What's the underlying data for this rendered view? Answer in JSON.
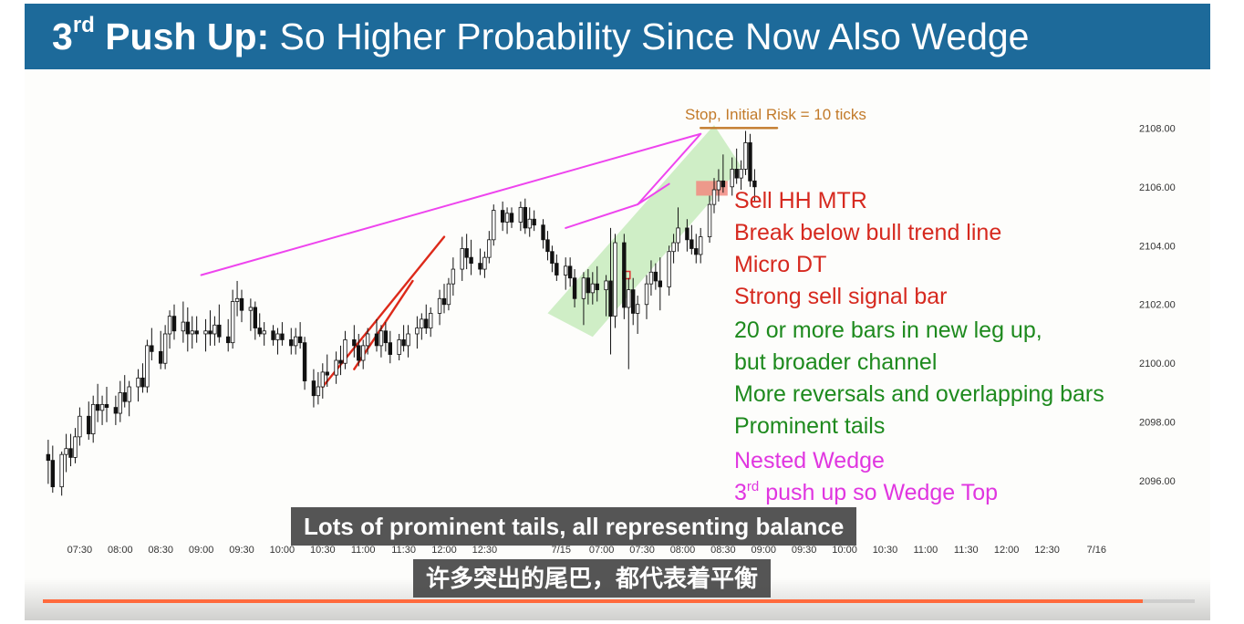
{
  "slide": {
    "title_bold": "3",
    "title_sup": "rd",
    "title_bold_rest": " Push Up:",
    "title_rest": " So Higher Probability Since Now Also Wedge"
  },
  "annotations": {
    "stop_label": "Stop, Initial Risk = 10 ticks",
    "notes": [
      {
        "text": "Sell HH MTR",
        "color": "red"
      },
      {
        "text": "Break below bull trend line",
        "color": "red"
      },
      {
        "text": "Micro DT",
        "color": "red"
      },
      {
        "text": "Strong sell signal bar",
        "color": "red"
      },
      {
        "text": "20 or more bars in new leg up,",
        "color": "green"
      },
      {
        "text": "but broader channel",
        "color": "green"
      },
      {
        "text": "More reversals and overlapping bars",
        "color": "green"
      },
      {
        "text": "Prominent tails",
        "color": "green"
      },
      {
        "text": "Nested Wedge",
        "color": "pink"
      }
    ],
    "last_note_pre": "3",
    "last_note_sup": "rd",
    "last_note_rest": " push up so Wedge Top"
  },
  "captions": {
    "english": "Lots of prominent tails, all representing balance",
    "chinese": "许多突出的尾巴，都代表着平衡"
  },
  "video": {
    "progress_fraction": 0.955
  },
  "colors": {
    "title_bar": "#1d6a9a",
    "red_text": "#d6291f",
    "green_text": "#1e8a1e",
    "pink_text": "#e036e0",
    "wedge_line": "#ee44ee",
    "trend_line": "#dd2a1a",
    "stop_line": "#c27a2a",
    "channel_fill": "#bfe8b4",
    "entry_box": "#f28a80"
  },
  "chart_data": {
    "type": "candlestick",
    "x_ticks": [
      "07:30",
      "08:00",
      "08:30",
      "09:00",
      "09:30",
      "10:00",
      "10:30",
      "11:00",
      "11:30",
      "12:00",
      "12:30",
      "7/15",
      "07:00",
      "07:30",
      "08:00",
      "08:30",
      "09:00",
      "09:30",
      "10:00",
      "10:30",
      "11:00",
      "11:30",
      "12:00",
      "12:30",
      "7/16"
    ],
    "y_ticks": [
      "2108.00",
      "2106.00",
      "2104.00",
      "2102.00",
      "2100.00",
      "2098.00",
      "2096.00"
    ],
    "ylim": [
      2094.3,
      2109.25
    ],
    "bars_x_range": [
      0,
      159
    ],
    "x_tick_positions": [
      9,
      18,
      27,
      36,
      45,
      54,
      63,
      72,
      81,
      90,
      99,
      116,
      125,
      134,
      143,
      152,
      161,
      170,
      179,
      188,
      197,
      206,
      215,
      224,
      235
    ],
    "xlim": [
      0,
      240
    ],
    "candles": [
      {
        "o": 2096.9,
        "h": 2097.4,
        "l": 2095.9,
        "c": 2096.7
      },
      {
        "o": 2096.7,
        "h": 2097.2,
        "l": 2095.6,
        "c": 2095.8
      },
      {
        "o": 2095.8,
        "h": 2097.0,
        "l": 2095.5,
        "c": 2096.9
      },
      {
        "o": 2096.9,
        "h": 2097.6,
        "l": 2096.3,
        "c": 2097.1
      },
      {
        "o": 2097.1,
        "h": 2097.6,
        "l": 2096.5,
        "c": 2096.8
      },
      {
        "o": 2096.8,
        "h": 2097.8,
        "l": 2096.6,
        "c": 2097.5
      },
      {
        "o": 2097.5,
        "h": 2098.5,
        "l": 2097.2,
        "c": 2098.2
      },
      {
        "o": 2098.2,
        "h": 2098.7,
        "l": 2097.4,
        "c": 2097.6
      },
      {
        "o": 2097.6,
        "h": 2098.9,
        "l": 2097.3,
        "c": 2098.6
      },
      {
        "o": 2098.6,
        "h": 2099.3,
        "l": 2098.0,
        "c": 2098.4
      },
      {
        "o": 2098.4,
        "h": 2098.9,
        "l": 2097.9,
        "c": 2098.6
      },
      {
        "o": 2098.6,
        "h": 2099.2,
        "l": 2098.0,
        "c": 2098.5
      },
      {
        "o": 2098.5,
        "h": 2098.9,
        "l": 2097.9,
        "c": 2098.3
      },
      {
        "o": 2098.3,
        "h": 2099.4,
        "l": 2098.0,
        "c": 2099.0
      },
      {
        "o": 2099.0,
        "h": 2099.6,
        "l": 2098.5,
        "c": 2098.7
      },
      {
        "o": 2098.7,
        "h": 2099.4,
        "l": 2098.2,
        "c": 2099.2
      },
      {
        "o": 2099.2,
        "h": 2099.8,
        "l": 2098.7,
        "c": 2099.5
      },
      {
        "o": 2099.5,
        "h": 2100.0,
        "l": 2099.0,
        "c": 2099.2
      },
      {
        "o": 2099.2,
        "h": 2100.8,
        "l": 2099.0,
        "c": 2100.6
      },
      {
        "o": 2100.6,
        "h": 2101.2,
        "l": 2100.1,
        "c": 2100.4
      },
      {
        "o": 2100.4,
        "h": 2101.1,
        "l": 2099.8,
        "c": 2100.0
      },
      {
        "o": 2100.0,
        "h": 2101.3,
        "l": 2099.8,
        "c": 2101.0
      },
      {
        "o": 2101.0,
        "h": 2101.8,
        "l": 2100.5,
        "c": 2101.6
      },
      {
        "o": 2101.6,
        "h": 2102.0,
        "l": 2100.8,
        "c": 2101.1
      },
      {
        "o": 2101.1,
        "h": 2102.1,
        "l": 2100.7,
        "c": 2101.4
      },
      {
        "o": 2101.4,
        "h": 2101.9,
        "l": 2100.4,
        "c": 2101.0
      },
      {
        "o": 2101.0,
        "h": 2101.6,
        "l": 2100.5,
        "c": 2101.1
      },
      {
        "o": 2101.1,
        "h": 2101.6,
        "l": 2100.7,
        "c": 2101.0
      },
      {
        "o": 2101.0,
        "h": 2101.5,
        "l": 2100.4,
        "c": 2101.1
      },
      {
        "o": 2101.1,
        "h": 2101.8,
        "l": 2100.6,
        "c": 2101.0
      },
      {
        "o": 2101.0,
        "h": 2101.6,
        "l": 2100.6,
        "c": 2101.3
      },
      {
        "o": 2101.3,
        "h": 2102.0,
        "l": 2100.7,
        "c": 2100.9
      },
      {
        "o": 2100.9,
        "h": 2101.5,
        "l": 2100.4,
        "c": 2100.7
      },
      {
        "o": 2100.7,
        "h": 2102.5,
        "l": 2100.5,
        "c": 2102.1
      },
      {
        "o": 2102.1,
        "h": 2102.8,
        "l": 2101.6,
        "c": 2102.2
      },
      {
        "o": 2102.2,
        "h": 2102.5,
        "l": 2101.4,
        "c": 2101.8
      },
      {
        "o": 2101.8,
        "h": 2102.2,
        "l": 2101.1,
        "c": 2101.9
      },
      {
        "o": 2101.9,
        "h": 2102.1,
        "l": 2100.8,
        "c": 2101.2
      },
      {
        "o": 2101.2,
        "h": 2101.7,
        "l": 2100.9,
        "c": 2101.0
      },
      {
        "o": 2101.0,
        "h": 2101.4,
        "l": 2100.6,
        "c": 2101.1
      },
      {
        "o": 2101.1,
        "h": 2101.3,
        "l": 2100.6,
        "c": 2100.8
      },
      {
        "o": 2100.8,
        "h": 2101.2,
        "l": 2100.3,
        "c": 2101.0
      },
      {
        "o": 2101.0,
        "h": 2101.4,
        "l": 2100.6,
        "c": 2100.8
      },
      {
        "o": 2100.8,
        "h": 2101.2,
        "l": 2100.3,
        "c": 2100.6
      },
      {
        "o": 2100.6,
        "h": 2101.2,
        "l": 2100.3,
        "c": 2100.9
      },
      {
        "o": 2100.9,
        "h": 2101.4,
        "l": 2100.5,
        "c": 2100.7
      },
      {
        "o": 2100.7,
        "h": 2100.9,
        "l": 2099.1,
        "c": 2099.4
      },
      {
        "o": 2099.4,
        "h": 2099.8,
        "l": 2098.5,
        "c": 2098.9
      },
      {
        "o": 2098.9,
        "h": 2099.7,
        "l": 2098.6,
        "c": 2099.2
      },
      {
        "o": 2099.2,
        "h": 2100.0,
        "l": 2098.8,
        "c": 2099.7
      },
      {
        "o": 2099.7,
        "h": 2100.3,
        "l": 2099.2,
        "c": 2099.6
      },
      {
        "o": 2099.6,
        "h": 2100.4,
        "l": 2099.3,
        "c": 2100.1
      },
      {
        "o": 2100.1,
        "h": 2100.6,
        "l": 2099.6,
        "c": 2100.0
      },
      {
        "o": 2100.0,
        "h": 2101.1,
        "l": 2099.8,
        "c": 2100.8
      },
      {
        "o": 2100.8,
        "h": 2101.3,
        "l": 2100.2,
        "c": 2100.6
      },
      {
        "o": 2100.6,
        "h": 2101.0,
        "l": 2099.9,
        "c": 2100.1
      },
      {
        "o": 2100.1,
        "h": 2100.8,
        "l": 2099.8,
        "c": 2100.6
      },
      {
        "o": 2100.6,
        "h": 2101.2,
        "l": 2100.3,
        "c": 2101.0
      },
      {
        "o": 2101.0,
        "h": 2101.5,
        "l": 2100.4,
        "c": 2100.6
      },
      {
        "o": 2100.6,
        "h": 2101.3,
        "l": 2100.2,
        "c": 2101.1
      },
      {
        "o": 2101.1,
        "h": 2101.4,
        "l": 2100.4,
        "c": 2100.7
      },
      {
        "o": 2100.7,
        "h": 2101.1,
        "l": 2100.0,
        "c": 2100.3
      },
      {
        "o": 2100.3,
        "h": 2101.0,
        "l": 2100.1,
        "c": 2100.8
      },
      {
        "o": 2100.8,
        "h": 2101.3,
        "l": 2100.4,
        "c": 2100.6
      },
      {
        "o": 2100.6,
        "h": 2101.3,
        "l": 2100.2,
        "c": 2101.0
      },
      {
        "o": 2101.0,
        "h": 2101.6,
        "l": 2100.5,
        "c": 2101.2
      },
      {
        "o": 2101.2,
        "h": 2101.7,
        "l": 2100.8,
        "c": 2101.5
      },
      {
        "o": 2101.5,
        "h": 2102.0,
        "l": 2101.0,
        "c": 2101.2
      },
      {
        "o": 2101.2,
        "h": 2101.9,
        "l": 2100.9,
        "c": 2101.7
      },
      {
        "o": 2101.7,
        "h": 2102.5,
        "l": 2101.3,
        "c": 2102.2
      },
      {
        "o": 2102.2,
        "h": 2102.7,
        "l": 2101.7,
        "c": 2102.0
      },
      {
        "o": 2102.0,
        "h": 2102.9,
        "l": 2101.8,
        "c": 2102.7
      },
      {
        "o": 2102.7,
        "h": 2103.6,
        "l": 2102.3,
        "c": 2103.2
      },
      {
        "o": 2103.2,
        "h": 2104.3,
        "l": 2102.8,
        "c": 2103.9
      },
      {
        "o": 2103.9,
        "h": 2104.4,
        "l": 2103.2,
        "c": 2103.6
      },
      {
        "o": 2103.6,
        "h": 2104.2,
        "l": 2103.0,
        "c": 2103.4
      },
      {
        "o": 2103.4,
        "h": 2103.9,
        "l": 2103.0,
        "c": 2103.2
      },
      {
        "o": 2103.2,
        "h": 2103.8,
        "l": 2102.9,
        "c": 2103.6
      },
      {
        "o": 2103.6,
        "h": 2104.5,
        "l": 2103.4,
        "c": 2104.2
      },
      {
        "o": 2104.2,
        "h": 2105.4,
        "l": 2104.0,
        "c": 2105.2
      },
      {
        "o": 2105.2,
        "h": 2105.5,
        "l": 2104.5,
        "c": 2104.8
      },
      {
        "o": 2104.8,
        "h": 2105.3,
        "l": 2104.4,
        "c": 2105.1
      },
      {
        "o": 2105.1,
        "h": 2105.3,
        "l": 2104.6,
        "c": 2104.8
      },
      {
        "o": 2104.8,
        "h": 2105.5,
        "l": 2104.5,
        "c": 2105.3
      },
      {
        "o": 2105.3,
        "h": 2105.6,
        "l": 2104.4,
        "c": 2104.6
      },
      {
        "o": 2104.6,
        "h": 2105.3,
        "l": 2104.3,
        "c": 2104.9
      },
      {
        "o": 2104.9,
        "h": 2105.2,
        "l": 2104.5,
        "c": 2104.7
      },
      {
        "o": 2104.7,
        "h": 2104.9,
        "l": 2103.9,
        "c": 2104.2
      },
      {
        "o": 2104.2,
        "h": 2104.5,
        "l": 2103.5,
        "c": 2103.8
      },
      {
        "o": 2103.8,
        "h": 2104.0,
        "l": 2103.1,
        "c": 2103.4
      },
      {
        "o": 2103.4,
        "h": 2103.7,
        "l": 2102.8,
        "c": 2103.0
      },
      {
        "o": 2103.0,
        "h": 2103.6,
        "l": 2102.5,
        "c": 2103.3
      },
      {
        "o": 2103.3,
        "h": 2103.6,
        "l": 2102.6,
        "c": 2102.9
      },
      {
        "o": 2102.9,
        "h": 2103.2,
        "l": 2101.9,
        "c": 2102.2
      },
      {
        "o": 2102.2,
        "h": 2103.1,
        "l": 2101.3,
        "c": 2102.9
      },
      {
        "o": 2102.9,
        "h": 2103.2,
        "l": 2102.0,
        "c": 2102.4
      },
      {
        "o": 2102.4,
        "h": 2103.1,
        "l": 2102.0,
        "c": 2102.7
      },
      {
        "o": 2102.7,
        "h": 2103.3,
        "l": 2102.1,
        "c": 2102.5
      },
      {
        "o": 2102.5,
        "h": 2103.0,
        "l": 2101.6,
        "c": 2102.8
      },
      {
        "o": 2102.8,
        "h": 2104.6,
        "l": 2100.3,
        "c": 2101.6
      },
      {
        "o": 2101.6,
        "h": 2104.4,
        "l": 2101.2,
        "c": 2104.1
      },
      {
        "o": 2104.1,
        "h": 2104.4,
        "l": 2101.5,
        "c": 2101.9
      },
      {
        "o": 2101.9,
        "h": 2102.9,
        "l": 2099.8,
        "c": 2102.5
      },
      {
        "o": 2102.5,
        "h": 2102.9,
        "l": 2101.3,
        "c": 2101.7
      },
      {
        "o": 2101.7,
        "h": 2102.3,
        "l": 2101.0,
        "c": 2102.0
      },
      {
        "o": 2102.0,
        "h": 2103.0,
        "l": 2101.5,
        "c": 2102.7
      },
      {
        "o": 2102.7,
        "h": 2103.5,
        "l": 2102.3,
        "c": 2103.1
      },
      {
        "o": 2103.1,
        "h": 2103.4,
        "l": 2102.5,
        "c": 2102.8
      },
      {
        "o": 2102.8,
        "h": 2103.6,
        "l": 2101.8,
        "c": 2102.6
      },
      {
        "o": 2102.6,
        "h": 2104.0,
        "l": 2102.3,
        "c": 2103.8
      },
      {
        "o": 2103.8,
        "h": 2104.4,
        "l": 2103.4,
        "c": 2104.1
      },
      {
        "o": 2104.1,
        "h": 2105.3,
        "l": 2103.8,
        "c": 2104.6
      },
      {
        "o": 2104.6,
        "h": 2104.9,
        "l": 2103.8,
        "c": 2104.2
      },
      {
        "o": 2104.2,
        "h": 2104.7,
        "l": 2103.7,
        "c": 2103.9
      },
      {
        "o": 2103.9,
        "h": 2104.4,
        "l": 2103.4,
        "c": 2103.7
      },
      {
        "o": 2103.7,
        "h": 2104.6,
        "l": 2103.4,
        "c": 2104.3
      },
      {
        "o": 2104.3,
        "h": 2105.7,
        "l": 2104.1,
        "c": 2105.4
      },
      {
        "o": 2105.4,
        "h": 2106.3,
        "l": 2105.1,
        "c": 2105.9
      },
      {
        "o": 2105.9,
        "h": 2106.6,
        "l": 2105.5,
        "c": 2106.2
      },
      {
        "o": 2106.2,
        "h": 2107.1,
        "l": 2105.8,
        "c": 2106.0
      },
      {
        "o": 2106.0,
        "h": 2107.0,
        "l": 2105.7,
        "c": 2106.6
      },
      {
        "o": 2106.6,
        "h": 2107.3,
        "l": 2106.1,
        "c": 2106.3
      },
      {
        "o": 2106.3,
        "h": 2106.9,
        "l": 2105.9,
        "c": 2106.6
      },
      {
        "o": 2106.6,
        "h": 2107.9,
        "l": 2106.4,
        "c": 2107.5
      },
      {
        "o": 2107.5,
        "h": 2107.8,
        "l": 2106.0,
        "c": 2106.2
      },
      {
        "o": 2106.2,
        "h": 2106.6,
        "l": 2105.5,
        "c": 2106.0
      }
    ],
    "candle_x": [
      2,
      3,
      5,
      6,
      7,
      8,
      9,
      11,
      12,
      13,
      14,
      15,
      17,
      18,
      19,
      20,
      22,
      23,
      24,
      25,
      27,
      28,
      29,
      30,
      32,
      33,
      34,
      35,
      37,
      38,
      39,
      40,
      42,
      43,
      44,
      45,
      47,
      48,
      49,
      50,
      52,
      53,
      54,
      56,
      57,
      58,
      59,
      61,
      62,
      63,
      64,
      66,
      67,
      68,
      70,
      71,
      72,
      73,
      75,
      76,
      77,
      78,
      80,
      81,
      82,
      84,
      85,
      86,
      87,
      89,
      90,
      91,
      92,
      94,
      95,
      96,
      98,
      99,
      100,
      101,
      103,
      104,
      105,
      107,
      108,
      109,
      110,
      112,
      113,
      114,
      115,
      117,
      118,
      119,
      121,
      122,
      123,
      124,
      126,
      127,
      128,
      130,
      131,
      132,
      133,
      135,
      136,
      137,
      138,
      140,
      141,
      142,
      144,
      145,
      146,
      147,
      149,
      150,
      151,
      152,
      154,
      155,
      156,
      157,
      158,
      159
    ],
    "overlays": {
      "wedge_upper": [
        [
          36,
          2103.0
        ],
        [
          147,
          2107.8
        ]
      ],
      "wedge_inner_1": [
        [
          117,
          2104.6
        ],
        [
          133,
          2105.4
        ],
        [
          140,
          2106.1
        ]
      ],
      "wedge_inner_2": [
        [
          133,
          2105.4
        ],
        [
          147,
          2107.8
        ]
      ],
      "bull_trend_line_1": [
        [
          63,
          2099.2
        ],
        [
          90,
          2104.3
        ]
      ],
      "bull_trend_line_2": [
        [
          70,
          2099.8
        ],
        [
          83,
          2102.8
        ]
      ],
      "stop_line": [
        [
          147,
          2108.0
        ],
        [
          164,
          2108.0
        ]
      ],
      "entry_box": {
        "x0": 146,
        "x1": 153,
        "y0": 2105.7,
        "y1": 2106.2
      }
    }
  }
}
